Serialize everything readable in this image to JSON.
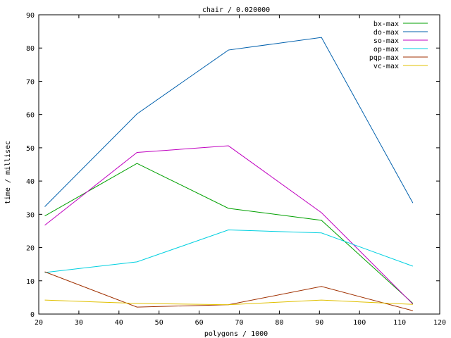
{
  "chart_data": {
    "type": "line",
    "title": "chair / 0.020000",
    "xlabel": "polygons / 1000",
    "ylabel": "time / millisec",
    "xlim": [
      20,
      120
    ],
    "ylim": [
      0,
      90
    ],
    "xticks": [
      20,
      30,
      40,
      50,
      60,
      70,
      80,
      90,
      100,
      110,
      120
    ],
    "yticks": [
      0,
      10,
      20,
      30,
      40,
      50,
      60,
      70,
      80,
      90
    ],
    "grid": false,
    "legend_position": "top-right",
    "x": [
      21.5,
      44.5,
      67.3,
      90.5,
      113.3
    ],
    "series": [
      {
        "name": "bx-max",
        "color": "#00a000",
        "values": [
          29.5,
          45.3,
          31.8,
          28.2,
          3.2
        ]
      },
      {
        "name": "do-max",
        "color": "#0060ad",
        "values": [
          32.3,
          60.2,
          79.4,
          83.2,
          33.4
        ]
      },
      {
        "name": "so-max",
        "color": "#c000c0",
        "values": [
          26.7,
          48.6,
          50.6,
          30.5,
          3.0
        ]
      },
      {
        "name": "op-max",
        "color": "#00d0e0",
        "values": [
          12.5,
          15.7,
          25.3,
          24.4,
          14.4
        ]
      },
      {
        "name": "pqp-max",
        "color": "#a03000",
        "values": [
          12.7,
          2.1,
          2.8,
          8.3,
          1.0
        ]
      },
      {
        "name": "vc-max",
        "color": "#e0c000",
        "values": [
          4.2,
          3.2,
          2.8,
          4.2,
          2.9
        ]
      }
    ]
  }
}
